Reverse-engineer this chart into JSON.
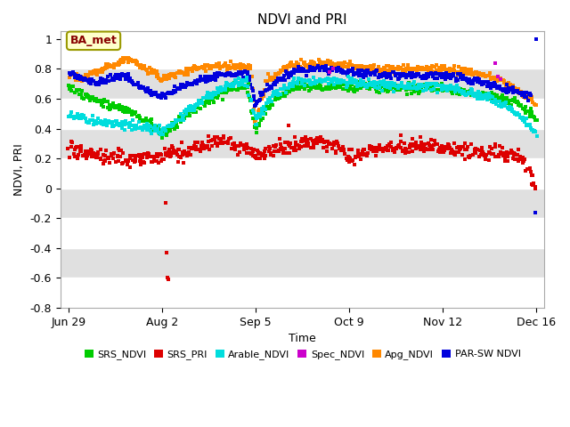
{
  "title": "NDVI and PRI",
  "xlabel": "Time",
  "ylabel": "NDVI, PRI",
  "ylim": [
    -0.8,
    1.05
  ],
  "yticks": [
    -0.8,
    -0.6,
    -0.4,
    -0.2,
    0.0,
    0.2,
    0.4,
    0.6,
    0.8,
    1.0
  ],
  "background_color": "#ffffff",
  "plot_bg_color": "#e0e0e0",
  "white_band_color": "#ffffff",
  "title_fontsize": 11,
  "label_fontsize": 9,
  "tick_fontsize": 9,
  "legend_fontsize": 8,
  "annotation_text": "BA_met",
  "annotation_box_facecolor": "#ffffcc",
  "annotation_box_edgecolor": "#999900",
  "annotation_text_color": "#880000",
  "colors": {
    "SRS_NDVI": "#00cc00",
    "SRS_PRI": "#dd0000",
    "Arable_NDVI": "#00dddd",
    "Spec_NDVI": "#cc00cc",
    "Apg_NDVI": "#ff8800",
    "PAR_SW_NDVI": "#0000dd"
  },
  "xtick_labels": [
    "Jun 29",
    "Aug 2",
    "Sep 5",
    "Oct 9",
    "Nov 12",
    "Dec 16"
  ],
  "xtick_pos": [
    0,
    34,
    68,
    102,
    136,
    170
  ],
  "xlim": [
    -3,
    173
  ]
}
